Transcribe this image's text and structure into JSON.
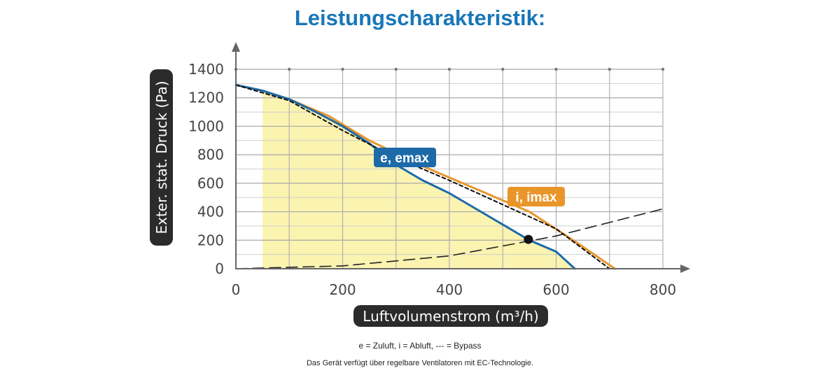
{
  "title": "Leistungscharakteristik:",
  "chart_data": {
    "type": "line",
    "xlabel": "Luftvolumenstrom (m³/h)",
    "ylabel": "Exter. stat. Druck (Pa)",
    "xlim": [
      0,
      800
    ],
    "ylim": [
      0,
      1400
    ],
    "xticks": [
      0,
      200,
      400,
      600,
      800
    ],
    "yticks": [
      0,
      200,
      400,
      600,
      800,
      1000,
      1200,
      1400
    ],
    "grid": true,
    "shaded_region": {
      "x_from": 50,
      "upper_curve": "e, emax"
    },
    "series": [
      {
        "name": "i, imax",
        "style": "solid",
        "color": "#e8962a",
        "x": [
          0,
          50,
          100,
          175,
          250,
          350,
          450,
          550,
          640,
          710
        ],
        "y": [
          1290,
          1250,
          1190,
          1070,
          900,
          720,
          560,
          400,
          180,
          0
        ]
      },
      {
        "name": "e, emax",
        "style": "solid",
        "color": "#1c6aa8",
        "x": [
          0,
          50,
          100,
          150,
          200,
          250,
          300,
          350,
          400,
          450,
          500,
          550,
          600,
          635
        ],
        "y": [
          1290,
          1250,
          1190,
          1100,
          1000,
          880,
          730,
          620,
          530,
          420,
          310,
          200,
          120,
          0
        ]
      },
      {
        "name": "dashed",
        "style": "dashed",
        "color": "#111111",
        "x": [
          0,
          100,
          200,
          300,
          400,
          500,
          600,
          700
        ],
        "y": [
          1290,
          1180,
          970,
          780,
          620,
          450,
          280,
          0
        ]
      },
      {
        "name": "Bypass",
        "style": "dashed-long",
        "color": "#222222",
        "x": [
          0,
          200,
          400,
          600,
          800
        ],
        "y": [
          0,
          20,
          90,
          230,
          420
        ]
      }
    ],
    "operating_point": {
      "x": 548,
      "y": 206
    },
    "labels": [
      {
        "text": "e, emax",
        "color": "#1c6aa8"
      },
      {
        "text": "i, imax",
        "color": "#e8962a"
      }
    ]
  },
  "legend_line": "e = Zuluft, i = Abluft, --- = Bypass",
  "note_line": "Das Gerät verfügt über regelbare Ventilatoren mit EC-Technologie."
}
